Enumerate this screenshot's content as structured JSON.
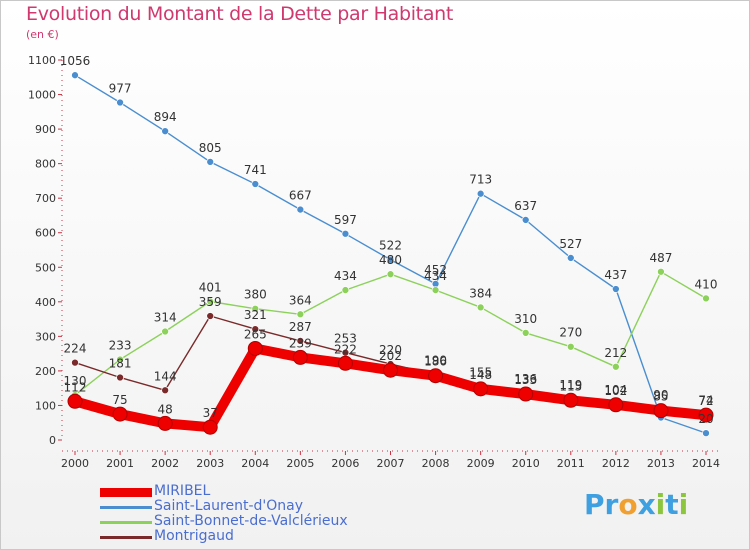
{
  "header": {
    "title": "Evolution du Montant de la Dette par Habitant",
    "subtitle": "(en €)"
  },
  "logo": {
    "text": "Proxiti",
    "letters": [
      {
        "ch": "P",
        "color": "#3ea0e0"
      },
      {
        "ch": "r",
        "color": "#3ea0e0"
      },
      {
        "ch": "o",
        "color": "#f0a030"
      },
      {
        "ch": "x",
        "color": "#3ea0e0"
      },
      {
        "ch": "i",
        "color": "#8cc63f"
      },
      {
        "ch": "t",
        "color": "#3ea0e0"
      },
      {
        "ch": "i",
        "color": "#8cc63f"
      }
    ]
  },
  "chart_data": {
    "type": "line",
    "x": [
      2000,
      2001,
      2002,
      2003,
      2004,
      2005,
      2006,
      2007,
      2008,
      2009,
      2010,
      2011,
      2012,
      2013,
      2014
    ],
    "ylim": [
      0,
      1100
    ],
    "yticks": [
      0,
      100,
      200,
      300,
      400,
      500,
      600,
      700,
      800,
      900,
      1000,
      1100
    ],
    "grid": false,
    "legend_position": "bottom-left",
    "series": [
      {
        "name": "Saint-Laurent-d'Onay",
        "color": "#4a8ed0",
        "values": [
          1056,
          977,
          894,
          805,
          741,
          667,
          597,
          522,
          452,
          713,
          637,
          527,
          437,
          65,
          20
        ],
        "labels": [
          "1056",
          "977",
          "894",
          "805",
          "741",
          "667",
          "597",
          "522",
          "452",
          "713",
          "637",
          "527",
          "437",
          "",
          "20"
        ]
      },
      {
        "name": "Saint-Bonnet-de-Valclérieux",
        "color": "#8cd15a",
        "values": [
          130,
          233,
          314,
          401,
          380,
          364,
          434,
          480,
          434,
          384,
          310,
          270,
          212,
          487,
          410
        ],
        "labels": [
          "130",
          "233",
          "314",
          "401",
          "380",
          "364",
          "434",
          "480",
          "434",
          "384",
          "310",
          "270",
          "212",
          "487",
          "410"
        ]
      },
      {
        "name": "Montrigaud",
        "color": "#7a2a2a",
        "values": [
          224,
          181,
          144,
          359,
          321,
          287,
          253,
          220,
          190,
          155,
          136,
          119,
          104,
          90,
          74
        ],
        "labels": [
          "224",
          "181",
          "144",
          "359",
          "321",
          "287",
          "253",
          "220",
          "190",
          "155",
          "136",
          "119",
          "104",
          "90",
          "74"
        ]
      },
      {
        "name": "MIRIBEL",
        "color": "#ee0000",
        "values": [
          112,
          75,
          48,
          37,
          265,
          239,
          222,
          202,
          186,
          148,
          133,
          115,
          102,
          85,
          72
        ],
        "labels": [
          "112",
          "75",
          "48",
          "37",
          "265",
          "239",
          "222",
          "202",
          "186",
          "148",
          "133",
          "115",
          "102",
          "85",
          "72"
        ]
      }
    ]
  },
  "legend": {
    "items": [
      {
        "label": "MIRIBEL",
        "color": "#ee0000",
        "thick": true
      },
      {
        "label": "Saint-Laurent-d'Onay",
        "color": "#4a8ed0",
        "thick": false
      },
      {
        "label": "Saint-Bonnet-de-Valclérieux",
        "color": "#8cd15a",
        "thick": false
      },
      {
        "label": "Montrigaud",
        "color": "#7a2a2a",
        "thick": false
      }
    ]
  }
}
